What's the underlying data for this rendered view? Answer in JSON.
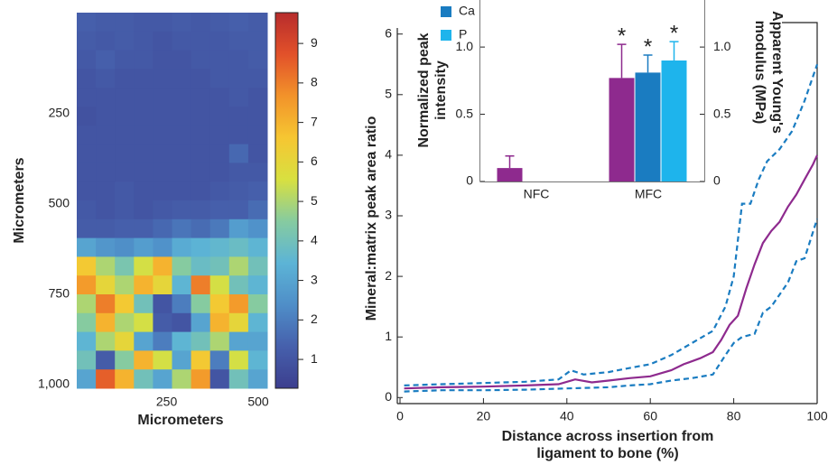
{
  "chart_data": [
    {
      "type": "heatmap",
      "xlabel": "Micrometers",
      "ylabel": "Micrometers",
      "xlim": [
        -20,
        500
      ],
      "ylim": [
        -30,
        1010
      ],
      "xticks": [
        250,
        500
      ],
      "yticks": [
        250,
        500,
        750,
        {
          "value": 1000,
          "label": "1,000"
        }
      ],
      "clim": [
        0.27,
        9.78
      ],
      "cticks": [
        1,
        2,
        3,
        4,
        5,
        6,
        7,
        8,
        9
      ],
      "colormap": [
        "#3c3e8e",
        "#4660ac",
        "#4f8ec8",
        "#5cb4d6",
        "#86cba0",
        "#d8e040",
        "#f6c632",
        "#f2932a",
        "#e2512a",
        "#b72c2c"
      ],
      "values": [
        [
          1.3,
          1.2,
          1.2,
          1.1,
          1.1,
          1.2,
          1.1,
          1.2,
          1.3,
          1.2
        ],
        [
          1.2,
          1.1,
          1.2,
          1.1,
          1.0,
          1.1,
          1.1,
          1.1,
          1.2,
          1.2
        ],
        [
          1.1,
          1.3,
          1.1,
          1.1,
          1.0,
          1.0,
          1.1,
          1.1,
          1.1,
          1.2
        ],
        [
          1.0,
          1.1,
          1.0,
          1.0,
          1.0,
          1.0,
          1.0,
          1.1,
          1.1,
          1.1
        ],
        [
          1.0,
          1.0,
          1.0,
          1.0,
          1.0,
          1.0,
          1.0,
          1.0,
          1.1,
          1.0
        ],
        [
          0.9,
          1.0,
          1.0,
          1.0,
          1.0,
          1.0,
          1.0,
          1.0,
          1.0,
          1.0
        ],
        [
          1.0,
          1.0,
          1.0,
          1.0,
          1.0,
          1.0,
          1.0,
          1.0,
          1.0,
          1.0
        ],
        [
          1.0,
          1.0,
          1.0,
          1.0,
          1.0,
          1.0,
          1.0,
          1.0,
          1.5,
          1.0
        ],
        [
          1.0,
          1.0,
          1.0,
          1.0,
          1.0,
          1.0,
          1.0,
          1.0,
          1.1,
          1.1
        ],
        [
          1.0,
          1.0,
          1.1,
          1.0,
          1.0,
          1.0,
          1.0,
          1.1,
          1.2,
          1.3
        ],
        [
          1.1,
          1.0,
          1.1,
          1.0,
          1.1,
          1.2,
          1.2,
          1.3,
          1.3,
          1.6
        ],
        [
          1.2,
          1.2,
          1.3,
          1.3,
          1.5,
          1.8,
          1.6,
          1.9,
          2.8,
          2.5
        ],
        [
          3.0,
          2.6,
          2.4,
          2.8,
          2.5,
          3.2,
          3.4,
          3.6,
          3.8,
          3.5
        ],
        [
          6.5,
          5.0,
          4.2,
          5.5,
          7.0,
          4.5,
          3.8,
          4.0,
          5.0,
          4.0
        ],
        [
          7.5,
          6.0,
          5.0,
          7.0,
          6.0,
          3.5,
          8.0,
          5.5,
          4.0,
          3.5
        ],
        [
          5.0,
          8.0,
          6.5,
          4.0,
          1.0,
          2.0,
          4.5,
          6.5,
          7.5,
          4.5
        ],
        [
          4.5,
          7.0,
          5.0,
          5.5,
          1.2,
          1.0,
          3.0,
          7.0,
          6.0,
          3.5
        ],
        [
          3.5,
          5.0,
          6.0,
          3.0,
          2.0,
          3.5,
          4.0,
          5.0,
          3.0,
          3.0
        ],
        [
          4.0,
          1.2,
          4.5,
          7.0,
          5.5,
          3.0,
          6.5,
          2.0,
          5.5,
          3.5
        ],
        [
          3.0,
          8.5,
          7.0,
          4.0,
          3.0,
          5.0,
          7.5,
          1.0,
          4.0,
          3.0
        ]
      ]
    },
    {
      "type": "line",
      "xlabel": [
        "Distance across insertion from",
        "ligament to bone (%)"
      ],
      "ylabel": "Mineral:matrix peak area ratio",
      "xlim": [
        0,
        100
      ],
      "ylim": [
        -0.1,
        6.1
      ],
      "xticks": [
        0,
        20,
        40,
        60,
        80,
        100
      ],
      "yticks": [
        0,
        1,
        2,
        3,
        4,
        5,
        6
      ],
      "series": [
        {
          "color": "#8e2a8e",
          "dash": false,
          "x": [
            1,
            10,
            20,
            30,
            38,
            42,
            46,
            50,
            55,
            60,
            65,
            68,
            72,
            75,
            77,
            79,
            81,
            83,
            85,
            87,
            89,
            91,
            93,
            95,
            97,
            99,
            100
          ],
          "values": [
            0.15,
            0.17,
            0.18,
            0.2,
            0.22,
            0.3,
            0.25,
            0.28,
            0.32,
            0.35,
            0.45,
            0.55,
            0.65,
            0.75,
            0.95,
            1.2,
            1.35,
            1.8,
            2.2,
            2.55,
            2.75,
            2.9,
            3.15,
            3.35,
            3.6,
            3.85,
            4.0
          ]
        },
        {
          "color": "#1a7cc1",
          "dash": true,
          "x": [
            1,
            10,
            20,
            30,
            38,
            41,
            44,
            50,
            56,
            60,
            65,
            70,
            75,
            78,
            80,
            82,
            84,
            86,
            88,
            91,
            94,
            97,
            100
          ],
          "values": [
            0.2,
            0.22,
            0.24,
            0.26,
            0.3,
            0.45,
            0.38,
            0.42,
            0.5,
            0.55,
            0.7,
            0.9,
            1.1,
            1.5,
            2.0,
            3.2,
            3.2,
            3.6,
            3.9,
            4.1,
            4.4,
            4.9,
            5.5
          ]
        },
        {
          "color": "#1a7cc1",
          "dash": true,
          "x": [
            1,
            10,
            20,
            30,
            40,
            50,
            55,
            60,
            65,
            70,
            75,
            78,
            80,
            82,
            85,
            87,
            89,
            91,
            93,
            95,
            97,
            100
          ],
          "values": [
            0.1,
            0.12,
            0.12,
            0.13,
            0.15,
            0.17,
            0.2,
            0.22,
            0.28,
            0.32,
            0.38,
            0.7,
            0.9,
            1.0,
            1.05,
            1.4,
            1.5,
            1.7,
            1.9,
            2.25,
            2.3,
            2.95
          ]
        }
      ]
    },
    {
      "type": "bar",
      "ylabel": [
        "Normalized peak",
        "intensity"
      ],
      "y2label": [
        "Apparent Young's",
        "modulus (MPa)"
      ],
      "categories": [
        "NFC",
        "MFC"
      ],
      "ylim": [
        0,
        1.35
      ],
      "yticks": [
        0,
        0.5,
        {
          "value": 1,
          "label": "1.0"
        }
      ],
      "y2lim": [
        0,
        1.35
      ],
      "y2ticks": [
        0,
        0.5,
        {
          "value": 1,
          "label": "1.0"
        }
      ],
      "legend": "top-left",
      "series": [
        {
          "color": "#8e2a8e",
          "values": [
            0.1,
            0.77
          ],
          "errors": [
            0.09,
            0.25
          ],
          "markers": [
            null,
            "*"
          ]
        },
        {
          "name": "Ca",
          "color": "#1a7cc1",
          "values": [
            null,
            0.81
          ],
          "errors": [
            null,
            0.13
          ],
          "markers": [
            null,
            "*"
          ]
        },
        {
          "name": "P",
          "color": "#1eb4ec",
          "values": [
            null,
            0.9
          ],
          "errors": [
            null,
            0.14
          ],
          "markers": [
            null,
            "*"
          ]
        }
      ]
    }
  ]
}
